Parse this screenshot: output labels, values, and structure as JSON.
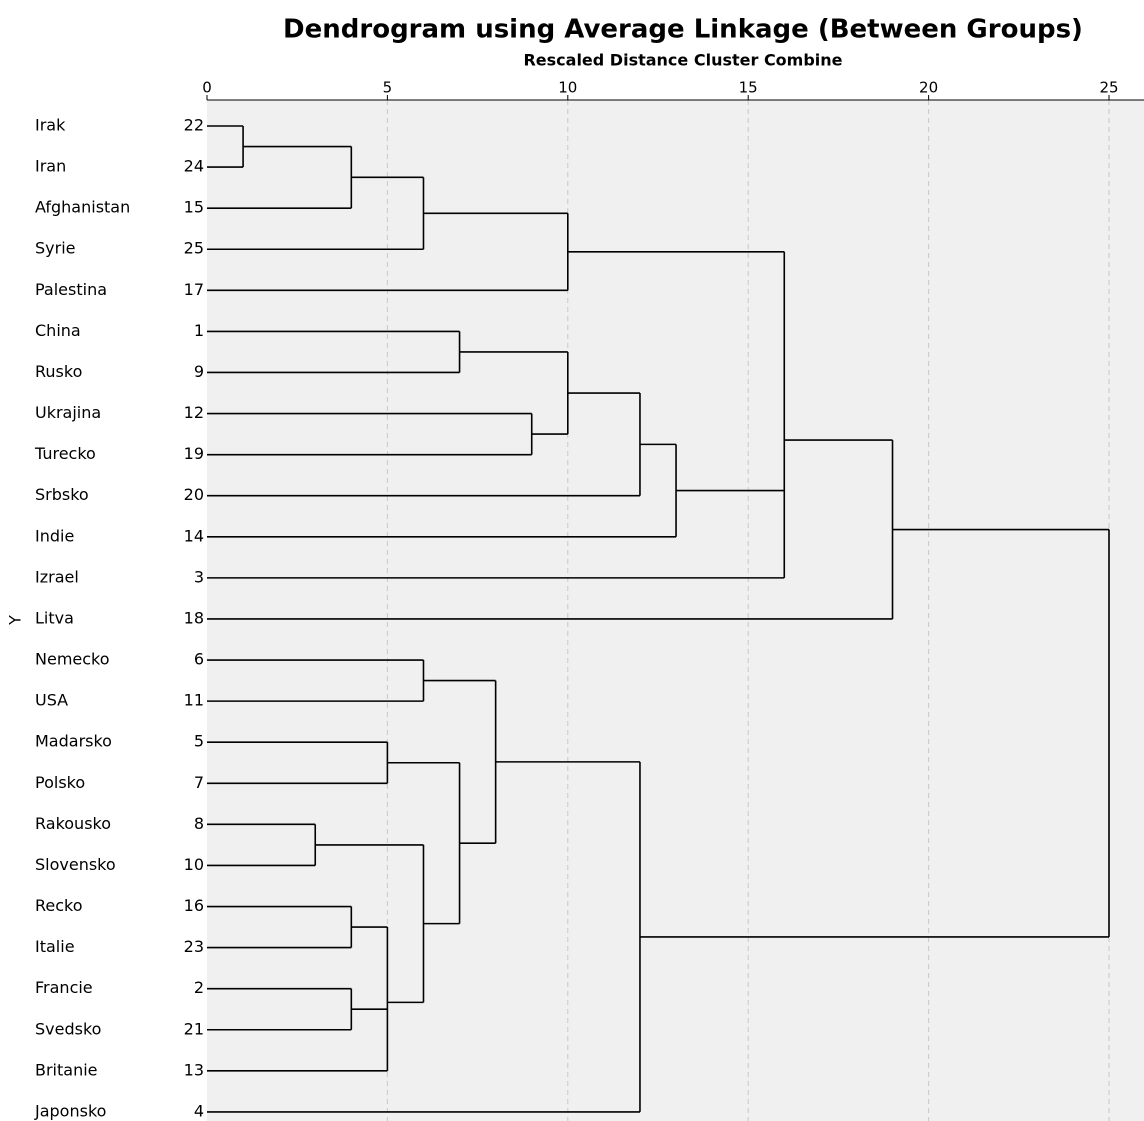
{
  "chart_data": {
    "type": "dendrogram",
    "title": "Dendrogram using Average Linkage (Between Groups)",
    "subtitle": "Rescaled Distance Cluster Combine",
    "y_label": "Y",
    "xlim": [
      0,
      25
    ],
    "xticks": [
      0,
      5,
      10,
      15,
      20,
      25
    ],
    "grid": true,
    "background": "#f0f0f0",
    "color": "#000000",
    "tree": {
      "distance": 25,
      "children": [
        {
          "distance": 19,
          "children": [
            {
              "distance": 16,
              "children": [
                {
                  "distance": 10,
                  "children": [
                    {
                      "distance": 6,
                      "children": [
                        {
                          "distance": 4,
                          "children": [
                            {
                              "distance": 1,
                              "children": [
                                {
                                  "label": "Irak",
                                  "case": 22
                                },
                                {
                                  "label": "Iran",
                                  "case": 24
                                }
                              ]
                            },
                            {
                              "label": "Afghanistan",
                              "case": 15
                            }
                          ]
                        },
                        {
                          "label": "Syrie",
                          "case": 25
                        }
                      ]
                    },
                    {
                      "label": "Palestina",
                      "case": 17
                    }
                  ]
                },
                {
                  "distance": 13,
                  "children": [
                    {
                      "distance": 12,
                      "children": [
                        {
                          "distance": 10,
                          "children": [
                            {
                              "distance": 7,
                              "children": [
                                {
                                  "label": "China",
                                  "case": 1
                                },
                                {
                                  "label": "Rusko",
                                  "case": 9
                                }
                              ]
                            },
                            {
                              "distance": 9,
                              "children": [
                                {
                                  "label": "Ukrajina",
                                  "case": 12
                                },
                                {
                                  "label": "Turecko",
                                  "case": 19
                                }
                              ]
                            }
                          ]
                        },
                        {
                          "label": "Srbsko",
                          "case": 20
                        }
                      ]
                    },
                    {
                      "label": "Indie",
                      "case": 14
                    }
                  ]
                },
                {
                  "label": "Izrael",
                  "case": 3
                }
              ]
            },
            {
              "label": "Litva",
              "case": 18
            }
          ]
        },
        {
          "distance": 12,
          "children": [
            {
              "distance": 8,
              "children": [
                {
                  "distance": 6,
                  "children": [
                    {
                      "label": "Nemecko",
                      "case": 6
                    },
                    {
                      "label": "USA",
                      "case": 11
                    }
                  ]
                },
                {
                  "distance": 7,
                  "children": [
                    {
                      "distance": 5,
                      "children": [
                        {
                          "label": "Madarsko",
                          "case": 5
                        },
                        {
                          "label": "Polsko",
                          "case": 7
                        }
                      ]
                    },
                    {
                      "distance": 6,
                      "children": [
                        {
                          "distance": 3,
                          "children": [
                            {
                              "label": "Rakousko",
                              "case": 8
                            },
                            {
                              "label": "Slovensko",
                              "case": 10
                            }
                          ]
                        },
                        {
                          "distance": 5,
                          "children": [
                            {
                              "distance": 4,
                              "children": [
                                {
                                  "label": "Recko",
                                  "case": 16
                                },
                                {
                                  "label": "Italie",
                                  "case": 23
                                }
                              ]
                            },
                            {
                              "distance": 4,
                              "children": [
                                {
                                  "label": "Francie",
                                  "case": 2
                                },
                                {
                                  "label": "Svedsko",
                                  "case": 21
                                }
                              ]
                            },
                            {
                              "label": "Britanie",
                              "case": 13
                            }
                          ]
                        }
                      ]
                    }
                  ]
                }
              ]
            },
            {
              "label": "Japonsko",
              "case": 4
            }
          ]
        }
      ]
    }
  }
}
